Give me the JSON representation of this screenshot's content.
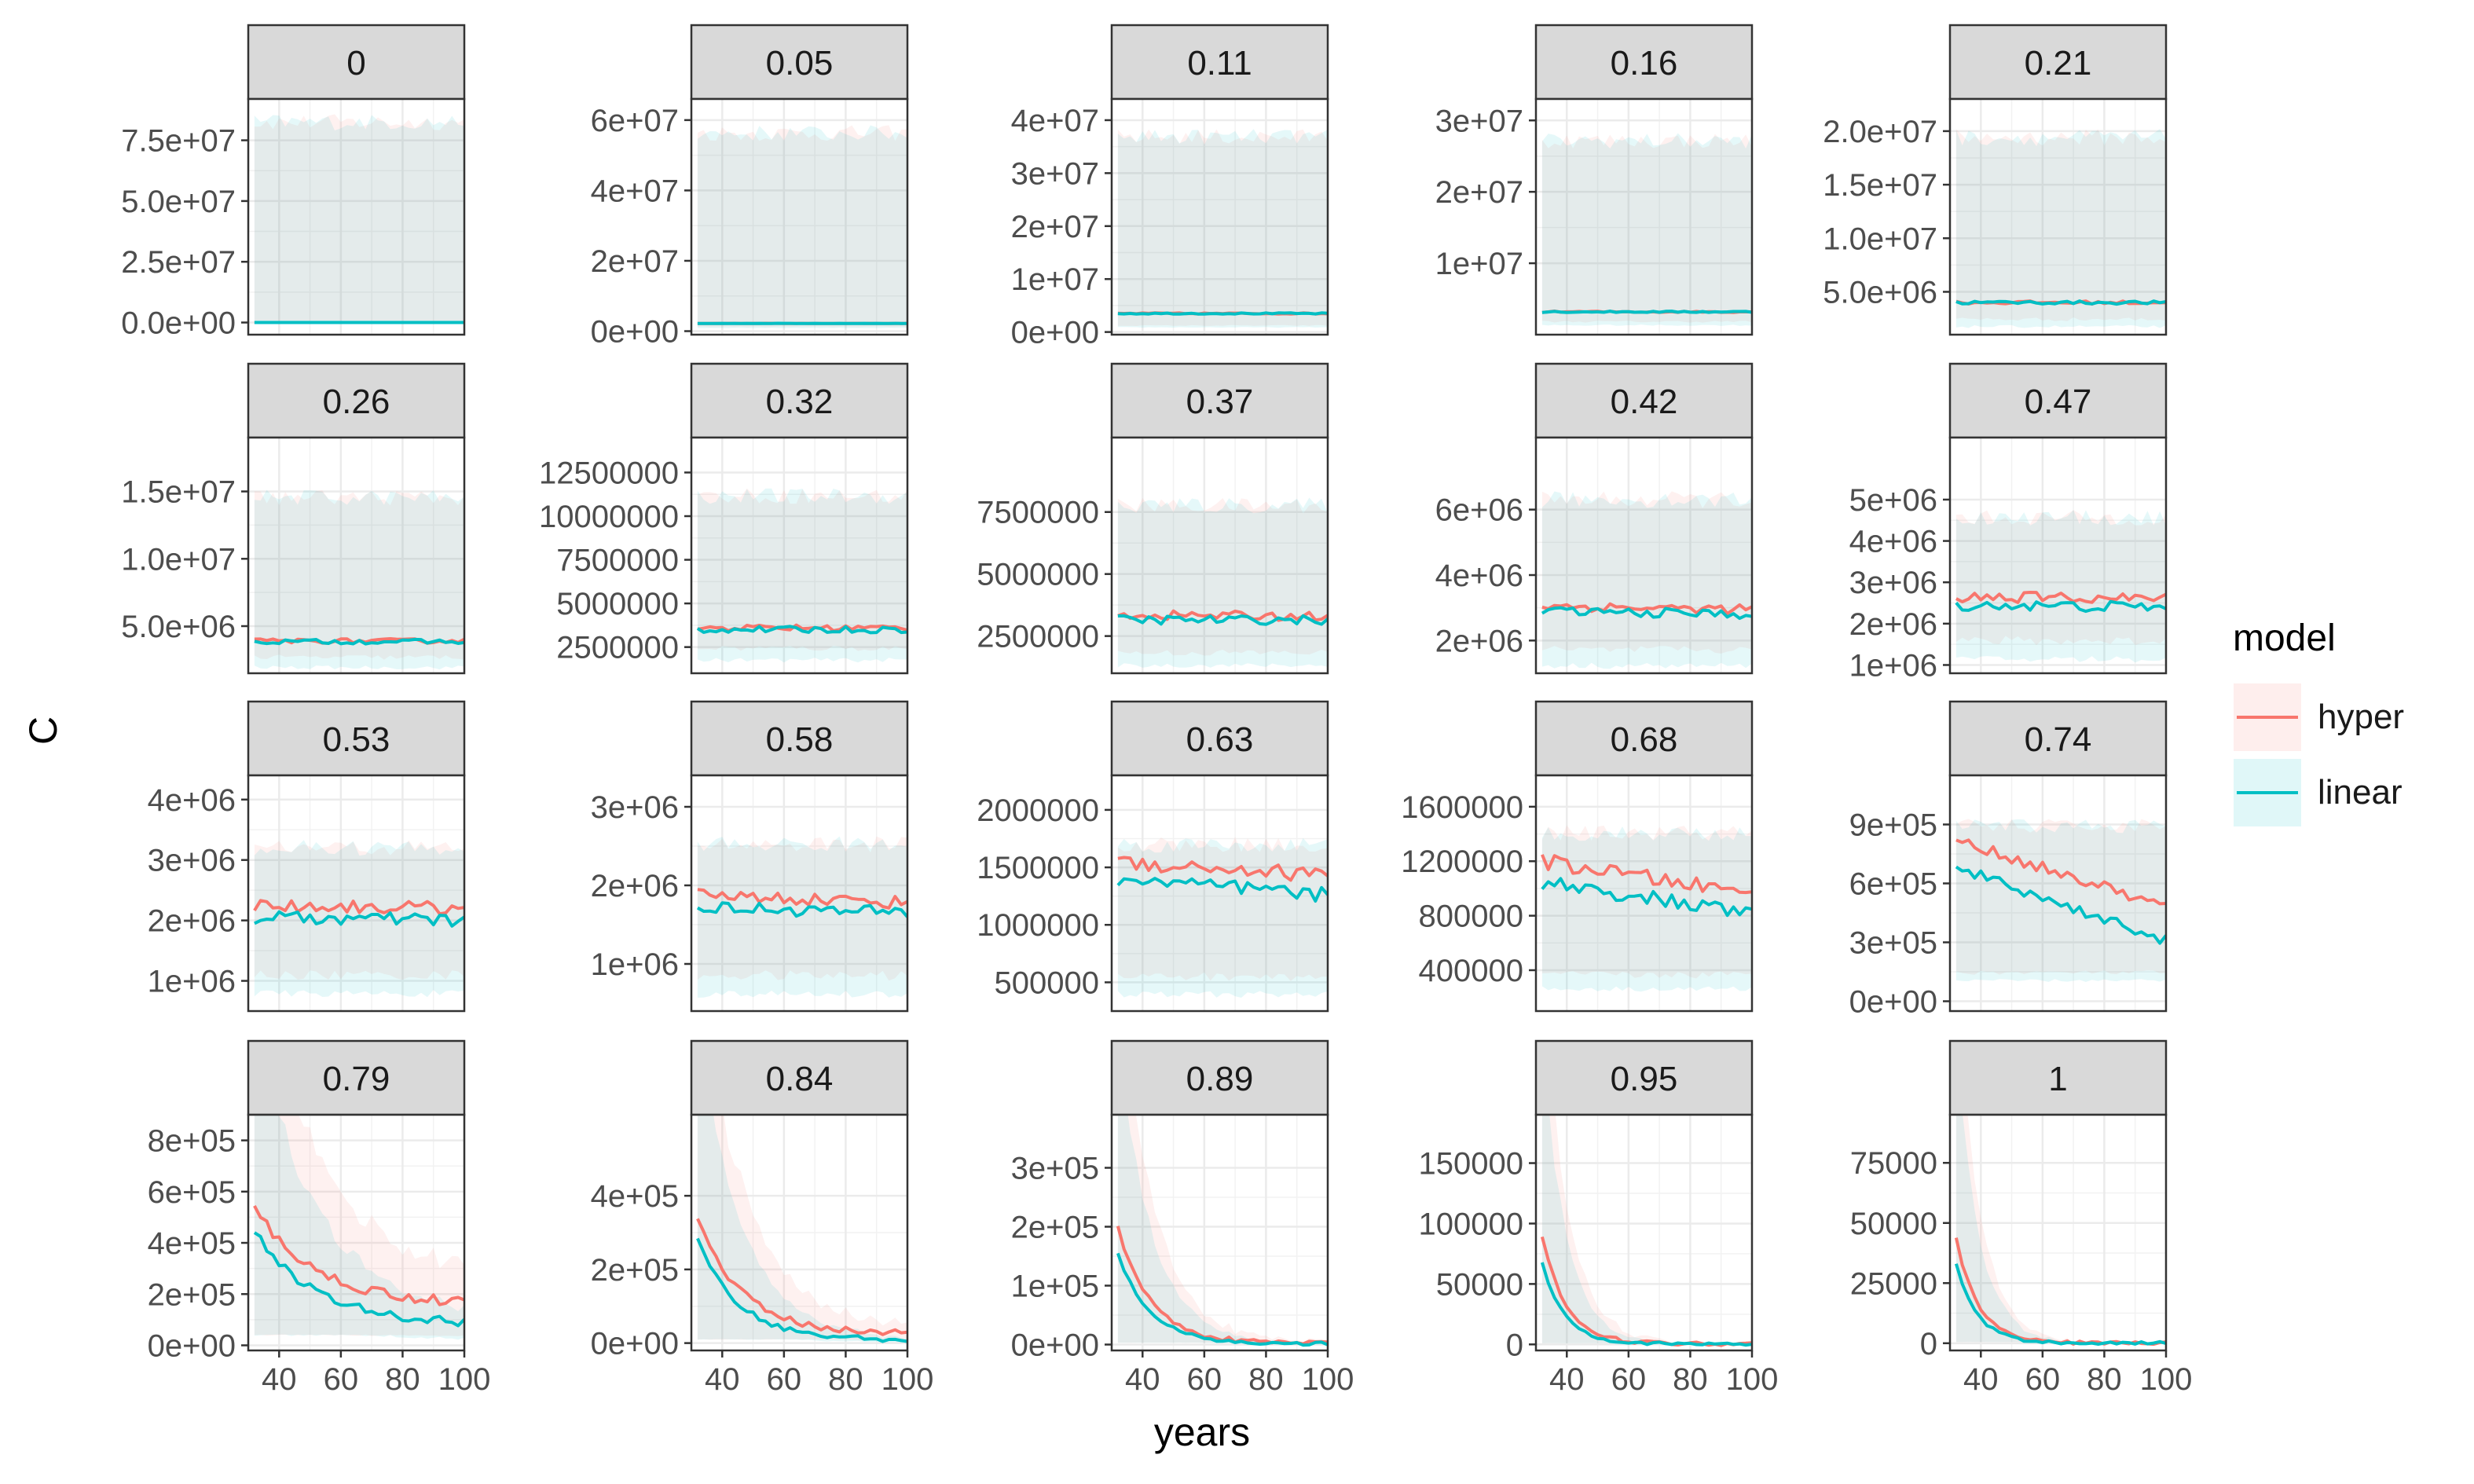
{
  "chart_data": {
    "type": "line",
    "facet_layout": "4 rows x 5 columns, free y scales",
    "xlabel": "years",
    "ylabel": "C",
    "x_ticks": [
      40,
      60,
      80,
      100
    ],
    "xlim": [
      30,
      100
    ],
    "grid": true,
    "legend": {
      "title": "model",
      "position": "right",
      "entries": [
        {
          "name": "hyper",
          "color": "#F8766D"
        },
        {
          "name": "linear",
          "color": "#00BFC4"
        }
      ]
    },
    "band_colors": {
      "hyper": "#F8766D",
      "linear": "#00BFC4"
    },
    "panels": [
      {
        "label": "0",
        "ylim": [
          -5000000,
          92000000
        ],
        "ticks": [
          0,
          25000000,
          50000000,
          75000000
        ],
        "tick_labels": [
          "0.0e+00",
          "2.5e+07",
          "5.0e+07",
          "7.5e+07"
        ],
        "series": [
          {
            "name": "hyper",
            "start": 0,
            "end": 0,
            "noise": 0
          },
          {
            "name": "linear",
            "start": 0,
            "end": 0,
            "noise": 0
          }
        ],
        "band": {
          "lo": 0,
          "hi": 85000000
        }
      },
      {
        "label": "0.05",
        "ylim": [
          -1000000,
          66000000
        ],
        "ticks": [
          0,
          20000000,
          40000000,
          60000000
        ],
        "tick_labels": [
          "0e+00",
          "2e+07",
          "4e+07",
          "6e+07"
        ],
        "series": [
          {
            "name": "hyper",
            "start": 2200000,
            "end": 2200000,
            "noise": 30000
          },
          {
            "name": "linear",
            "start": 2200000,
            "end": 2200000,
            "noise": 30000
          }
        ],
        "band": {
          "lo": 1000000,
          "hi": 58000000
        }
      },
      {
        "label": "0.11",
        "ylim": [
          -500000,
          44000000
        ],
        "ticks": [
          0,
          10000000,
          20000000,
          30000000,
          40000000
        ],
        "tick_labels": [
          "0e+00",
          "1e+07",
          "2e+07",
          "3e+07",
          "4e+07"
        ],
        "series": [
          {
            "name": "hyper",
            "start": 3500000,
            "end": 3500000,
            "noise": 120000
          },
          {
            "name": "linear",
            "start": 3500000,
            "end": 3500000,
            "noise": 120000
          }
        ],
        "band": {
          "lo": 1000000,
          "hi": 38000000
        }
      },
      {
        "label": "0.16",
        "ylim": [
          0,
          33000000
        ],
        "ticks": [
          10000000,
          20000000,
          30000000
        ],
        "tick_labels": [
          "1e+07",
          "2e+07",
          "3e+07"
        ],
        "series": [
          {
            "name": "hyper",
            "start": 3200000,
            "end": 3200000,
            "noise": 100000
          },
          {
            "name": "linear",
            "start": 3200000,
            "end": 3200000,
            "noise": 100000
          }
        ],
        "band": {
          "lo": 1500000,
          "hi": 28000000
        }
      },
      {
        "label": "0.21",
        "ylim": [
          1000000,
          23000000
        ],
        "ticks": [
          5000000,
          10000000,
          15000000,
          20000000
        ],
        "tick_labels": [
          "5.0e+06",
          "1.0e+07",
          "1.5e+07",
          "2.0e+07"
        ],
        "series": [
          {
            "name": "hyper",
            "start": 4000000,
            "end": 4000000,
            "noise": 150000
          },
          {
            "name": "linear",
            "start": 4000000,
            "end": 4000000,
            "noise": 150000
          }
        ],
        "band": {
          "lo": 2000000,
          "hi": 20000000
        }
      },
      {
        "label": "0.26",
        "ylim": [
          1500000,
          19000000
        ],
        "ticks": [
          5000000,
          10000000,
          15000000
        ],
        "tick_labels": [
          "5.0e+06",
          "1.0e+07",
          "1.5e+07"
        ],
        "series": [
          {
            "name": "hyper",
            "start": 3900000,
            "end": 3900000,
            "noise": 170000
          },
          {
            "name": "linear",
            "start": 3850000,
            "end": 3850000,
            "noise": 170000
          }
        ],
        "band": {
          "lo": 2200000,
          "hi": 15000000
        }
      },
      {
        "label": "0.32",
        "ylim": [
          1000000,
          14500000
        ],
        "ticks": [
          2500000,
          5000000,
          7500000,
          10000000,
          12500000
        ],
        "tick_labels": [
          "2500000",
          "5000000",
          "7500000",
          "10000000",
          "12500000"
        ],
        "series": [
          {
            "name": "hyper",
            "start": 3600000,
            "end": 3600000,
            "noise": 180000
          },
          {
            "name": "linear",
            "start": 3500000,
            "end": 3500000,
            "noise": 180000
          }
        ],
        "band": {
          "lo": 2000000,
          "hi": 11500000
        }
      },
      {
        "label": "0.37",
        "ylim": [
          1000000,
          10500000
        ],
        "ticks": [
          2500000,
          5000000,
          7500000
        ],
        "tick_labels": [
          "2500000",
          "5000000",
          "7500000"
        ],
        "series": [
          {
            "name": "hyper",
            "start": 3350000,
            "end": 3300000,
            "noise": 180000
          },
          {
            "name": "linear",
            "start": 3150000,
            "end": 3150000,
            "noise": 180000
          }
        ],
        "band": {
          "lo": 1500000,
          "hi": 8000000
        }
      },
      {
        "label": "0.42",
        "ylim": [
          1000000,
          8200000
        ],
        "ticks": [
          2000000,
          4000000,
          6000000
        ],
        "tick_labels": [
          "2e+06",
          "4e+06",
          "6e+06"
        ],
        "series": [
          {
            "name": "hyper",
            "start": 3050000,
            "end": 2950000,
            "noise": 140000
          },
          {
            "name": "linear",
            "start": 2900000,
            "end": 2800000,
            "noise": 140000
          }
        ],
        "band": {
          "lo": 1400000,
          "hi": 6500000
        }
      },
      {
        "label": "0.47",
        "ylim": [
          800000,
          6500000
        ],
        "ticks": [
          1000000,
          2000000,
          3000000,
          4000000,
          5000000
        ],
        "tick_labels": [
          "1e+06",
          "2e+06",
          "3e+06",
          "4e+06",
          "5e+06"
        ],
        "series": [
          {
            "name": "hyper",
            "start": 2650000,
            "end": 2600000,
            "noise": 130000
          },
          {
            "name": "linear",
            "start": 2450000,
            "end": 2400000,
            "noise": 130000
          }
        ],
        "band": {
          "lo": 1300000,
          "hi": 4700000
        }
      },
      {
        "label": "0.53",
        "ylim": [
          500000,
          4400000
        ],
        "ticks": [
          1000000,
          2000000,
          3000000,
          4000000
        ],
        "tick_labels": [
          "1e+06",
          "2e+06",
          "3e+06",
          "4e+06"
        ],
        "series": [
          {
            "name": "hyper",
            "start": 2250000,
            "end": 2200000,
            "noise": 110000
          },
          {
            "name": "linear",
            "start": 2050000,
            "end": 2000000,
            "noise": 110000
          }
        ],
        "band": {
          "lo": 900000,
          "hi": 3300000
        }
      },
      {
        "label": "0.58",
        "ylim": [
          400000,
          3400000
        ],
        "ticks": [
          1000000,
          2000000,
          3000000
        ],
        "tick_labels": [
          "1e+06",
          "2e+06",
          "3e+06"
        ],
        "series": [
          {
            "name": "hyper",
            "start": 1880000,
            "end": 1780000,
            "noise": 80000
          },
          {
            "name": "linear",
            "start": 1720000,
            "end": 1650000,
            "noise": 80000
          }
        ],
        "band": {
          "lo": 700000,
          "hi": 2600000
        }
      },
      {
        "label": "0.63",
        "ylim": [
          250000,
          2300000
        ],
        "ticks": [
          500000,
          1000000,
          1500000,
          2000000
        ],
        "tick_labels": [
          "500000",
          "1000000",
          "1500000",
          "2000000"
        ],
        "series": [
          {
            "name": "hyper",
            "start": 1550000,
            "end": 1430000,
            "noise": 70000
          },
          {
            "name": "linear",
            "start": 1400000,
            "end": 1250000,
            "noise": 70000
          }
        ],
        "band": {
          "lo": 450000,
          "hi": 1750000
        }
      },
      {
        "label": "0.68",
        "ylim": [
          100000,
          1830000
        ],
        "ticks": [
          400000,
          800000,
          1200000,
          1600000
        ],
        "tick_labels": [
          "400000",
          "800000",
          "1200000",
          "1600000"
        ],
        "series": [
          {
            "name": "hyper",
            "start": 1200000,
            "end": 960000,
            "noise": 55000
          },
          {
            "name": "linear",
            "start": 1050000,
            "end": 810000,
            "noise": 55000
          }
        ],
        "band": {
          "lo": 300000,
          "hi": 1450000
        }
      },
      {
        "label": "0.74",
        "ylim": [
          -50000,
          1150000
        ],
        "ticks": [
          0,
          300000,
          600000,
          900000
        ],
        "tick_labels": [
          "0e+00",
          "3e+05",
          "6e+05",
          "9e+05"
        ],
        "series": [
          {
            "name": "hyper",
            "start": 820000,
            "end": 480000,
            "noise": 28000
          },
          {
            "name": "linear",
            "start": 680000,
            "end": 310000,
            "noise": 28000
          }
        ],
        "band": {
          "lo": 120000,
          "hi": 920000
        }
      },
      {
        "label": "0.79",
        "ylim": [
          -20000,
          900000
        ],
        "ticks": [
          0,
          200000,
          400000,
          600000,
          800000
        ],
        "tick_labels": [
          "0e+00",
          "2e+05",
          "4e+05",
          "6e+05",
          "8e+05"
        ],
        "series": [
          {
            "name": "hyper",
            "start": 540000,
            "end": 160000,
            "noise": 20000,
            "decay": 2.2
          },
          {
            "name": "linear",
            "start": 450000,
            "end": 80000,
            "noise": 18000,
            "decay": 2.2
          }
        ],
        "band": {
          "lo": 40000,
          "hi": 700000
        }
      },
      {
        "label": "0.84",
        "ylim": [
          -20000,
          620000
        ],
        "ticks": [
          0,
          200000,
          400000
        ],
        "tick_labels": [
          "0e+00",
          "2e+05",
          "4e+05"
        ],
        "series": [
          {
            "name": "hyper",
            "start": 340000,
            "end": 25000,
            "noise": 9000,
            "decay": 3.0
          },
          {
            "name": "linear",
            "start": 280000,
            "end": 8000,
            "noise": 7000,
            "decay": 3.2
          }
        ],
        "band": {
          "lo": 10000,
          "hi": 520000
        }
      },
      {
        "label": "0.89",
        "ylim": [
          -10000,
          390000
        ],
        "ticks": [
          0,
          100000,
          200000,
          300000
        ],
        "tick_labels": [
          "0e+00",
          "1e+05",
          "2e+05",
          "3e+05"
        ],
        "series": [
          {
            "name": "hyper",
            "start": 200000,
            "end": 2000,
            "noise": 4000,
            "decay": 4.0
          },
          {
            "name": "linear",
            "start": 155000,
            "end": 1000,
            "noise": 3000,
            "decay": 4.2
          }
        ],
        "band": {
          "lo": 3000,
          "hi": 340000
        }
      },
      {
        "label": "0.95",
        "ylim": [
          -5000,
          190000
        ],
        "ticks": [
          0,
          50000,
          100000,
          150000
        ],
        "tick_labels": [
          "0",
          "50000",
          "100000",
          "150000"
        ],
        "series": [
          {
            "name": "hyper",
            "start": 90000,
            "end": 500,
            "noise": 1500,
            "decay": 5.5
          },
          {
            "name": "linear",
            "start": 68000,
            "end": 300,
            "noise": 1200,
            "decay": 5.8
          }
        ],
        "band": {
          "lo": 1000,
          "hi": 170000
        }
      },
      {
        "label": "1",
        "ylim": [
          -3000,
          95000
        ],
        "ticks": [
          0,
          25000,
          50000,
          75000
        ],
        "tick_labels": [
          "0",
          "25000",
          "50000",
          "75000"
        ],
        "series": [
          {
            "name": "hyper",
            "start": 44000,
            "end": 100,
            "noise": 700,
            "decay": 6.0
          },
          {
            "name": "linear",
            "start": 33000,
            "end": 80,
            "noise": 600,
            "decay": 6.2
          }
        ],
        "band": {
          "lo": 500,
          "hi": 85000
        }
      }
    ]
  }
}
